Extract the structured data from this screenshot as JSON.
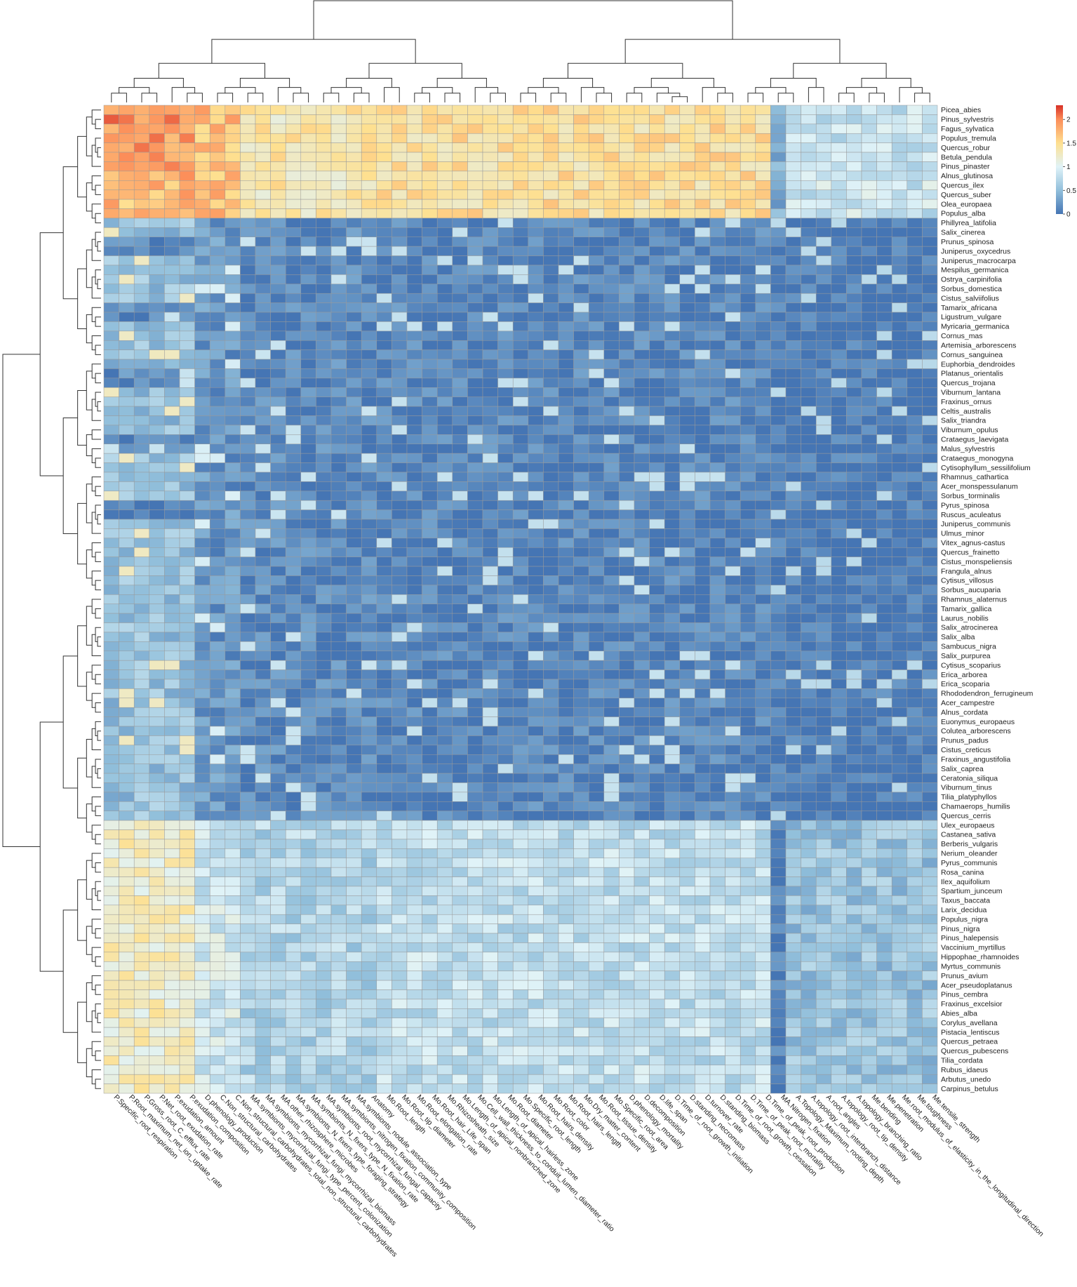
{
  "chart_data": {
    "type": "heatmap",
    "title": "",
    "xlabel": "",
    "ylabel": "",
    "color_scale": {
      "stops": [
        {
          "value": 0,
          "color": "#4575b4"
        },
        {
          "value": 0.5,
          "color": "#91bfdb"
        },
        {
          "value": 1,
          "color": "#e0f3f8"
        },
        {
          "value": 1.5,
          "color": "#fee090"
        },
        {
          "value": 2,
          "color": "#fc8d59"
        },
        {
          "value": 2.3,
          "color": "#d73027"
        }
      ],
      "legend_ticks": [
        "2",
        "1.5",
        "1",
        "0.5",
        "0"
      ],
      "legend_position": "top-right"
    },
    "dendrograms": {
      "rows": true,
      "columns": true
    },
    "rows": [
      "Picea_abies",
      "Pinus_sylvestris",
      "Fagus_sylvatica",
      "Populus_tremula",
      "Quercus_robur",
      "Betula_pendula",
      "Pinus_pinaster",
      "Alnus_glutinosa",
      "Quercus_ilex",
      "Quercus_suber",
      "Olea_europaea",
      "Populus_alba",
      "Phillyrea_latifolia",
      "Salix_cinerea",
      "Prunus_spinosa",
      "Juniperus_oxycedrus",
      "Juniperus_macrocarpa",
      "Mespilus_germanica",
      "Ostrya_carpinifolia",
      "Sorbus_domestica",
      "Cistus_salviifolius",
      "Tamarix_africana",
      "Ligustrum_vulgare",
      "Myricaria_germanica",
      "Cornus_mas",
      "Artemisia_arborescens",
      "Cornus_sanguinea",
      "Euphorbia_dendroides",
      "Platanus_orientalis",
      "Quercus_trojana",
      "Viburnum_lantana",
      "Fraxinus_ornus",
      "Celtis_australis",
      "Salix_triandra",
      "Viburnum_opulus",
      "Crataegus_laevigata",
      "Malus_sylvestris",
      "Crataegus_monogyna",
      "Cytisophyllum_sessilifolium",
      "Rhamnus_cathartica",
      "Acer_monspessulanum",
      "Sorbus_torminalis",
      "Pyrus_spinosa",
      "Ruscus_aculeatus",
      "Juniperus_communis",
      "Ulmus_minor",
      "Vitex_agnus-castus",
      "Quercus_frainetto",
      "Cistus_monspeliensis",
      "Frangula_alnus",
      "Cytisus_villosus",
      "Sorbus_aucuparia",
      "Rhamnus_alaternus",
      "Tamarix_gallica",
      "Laurus_nobilis",
      "Salix_atrocinerea",
      "Salix_alba",
      "Sambucus_nigra",
      "Salix_purpurea",
      "Cytisus_scoparius",
      "Erica_arborea",
      "Erica_scoparia",
      "Rhododendron_ferrugineum",
      "Acer_campestre",
      "Alnus_cordata",
      "Euonymus_europaeus",
      "Colutea_arborescens",
      "Prunus_padus",
      "Cistus_creticus",
      "Fraxinus_angustifolia",
      "Salix_caprea",
      "Ceratonia_siliqua",
      "Viburnum_tinus",
      "Tilia_platyphyllos",
      "Chamaerops_humilis",
      "Quercus_cerris",
      "Ulex_europaeus",
      "Castanea_sativa",
      "Berberis_vulgaris",
      "Nerium_oleander",
      "Pyrus_communis",
      "Rosa_canina",
      "Ilex_aquifolium",
      "Spartium_junceum",
      "Taxus_baccata",
      "Larix_decidua",
      "Populus_nigra",
      "Pinus_nigra",
      "Pinus_halepensis",
      "Vaccinium_myrtillus",
      "Hippophae_rhamnoides",
      "Myrtus_communis",
      "Prunus_avium",
      "Acer_pseudoplatanus",
      "Pinus_cembra",
      "Fraxinus_excelsior",
      "Abies_alba",
      "Corylus_avellana",
      "Pistacia_lentiscus",
      "Quercus_petraea",
      "Quercus_pubescens",
      "Tilia_cordata",
      "Rubus_idaeus",
      "Arbutus_unedo",
      "Carpinus_betulus"
    ],
    "columns": [
      "P.Specific_root_respiration",
      "P.Root_maximum_net_ion_uptake_rate",
      "P.Gross_root_C_efflux_rate",
      "P.Net_root_exudation_rate",
      "P.exudation_amount",
      "P.exudation_composition",
      "D.phenology_production",
      "C.Non_structural_carbohydrates",
      "C.Non_structural_carbohydrates_total_non_structural_carbohydrates",
      "MA.symbionts_mycorrhizal_fungi_type_percent_colonization",
      "MA.symbionts_mycorrhizal_fungi_mycorrhizal_biomass",
      "MA.other_rhizosphere_microbes",
      "MA.symbionts_N_fixers_type_foraging_strategy",
      "MA.symbionts_N_fixers_type_N_fixation_rate",
      "MA.symbionts_root_mycorrhizal_fungal_capacity",
      "MA.symbionts_nitrogen_fixation_community_composition",
      "MA.symbionts_nodule_association_type",
      "Anatomy",
      "Mo.Root_length",
      "Mo.Root_tip_diameter",
      "Mo.Root_elongation_rate",
      "Mo.Root_hair_Life_span",
      "Mo.Rhizosheath_size",
      "Mo.Length_of_apical_nonbranched_zone",
      "Mo.Cell_wall_thickness_to_conduit_lumen_diameter_ratio",
      "Mo.Length_of_apical_hairless_zone",
      "Mo.Root_diameter",
      "Mo.Specific_root_length",
      "Mo.Root_hairs_density",
      "Mo.Root_color",
      "Mo.Root_hairs_length",
      "Mo.Dry_matter_content",
      "Mo.Root_tissue_density",
      "Mo.Specific_root_area",
      "D.phenology_mortality",
      "D.decomposition",
      "D.life_span",
      "D.Time_of_root_growth_initiation",
      "D.standing_necromass",
      "D.turnover_rate",
      "D.standing_biomass",
      "D.Time_of_root_growth_cessation",
      "D.Time_of_peak_root_mortality",
      "D.Time_of_peak_root_production",
      "MA.Nitrogen_fixation",
      "A.Topology_Maximum_rooting_depth",
      "A.topology_root_interbranch_distance",
      "A.root_angles",
      "A.topology_root_tip_density",
      "A.topology_branching_ratio",
      "Me.bending",
      "Me.penetration",
      "Me.root_modulus_of_elasticity_in_the_longitudinal_direction",
      "Me.toughness",
      "Me.tensile_strength"
    ]
  }
}
